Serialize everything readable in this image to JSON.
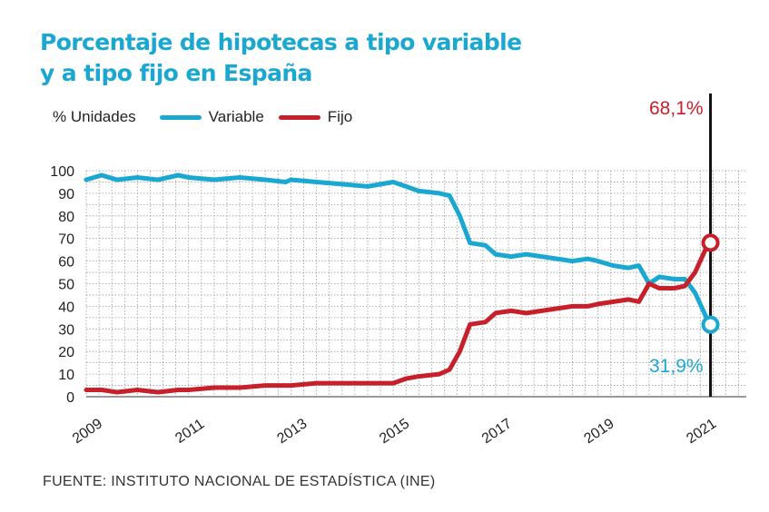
{
  "title_line1": "Porcentaje de hipotecas a tipo variable",
  "title_line2": "y a tipo fijo en España",
  "legend": {
    "unit_label": "% Unidades"
  },
  "source": "FUENTE: INSTITUTO NACIONAL DE ESTADÍSTICA (INE)",
  "colors": {
    "variable": "#1aa7d1",
    "fijo": "#c8202b",
    "title": "#1aa7d1"
  },
  "chart_data": {
    "type": "line",
    "title": "Porcentaje de hipotecas a tipo variable y a tipo fijo en España",
    "xlabel": "",
    "ylabel": "% Unidades",
    "ylim": [
      0,
      100
    ],
    "xlim": [
      2009,
      2021.9
    ],
    "yticks": [
      "0",
      "10",
      "20",
      "30",
      "40",
      "50",
      "60",
      "70",
      "80",
      "90",
      "100"
    ],
    "xticks": [
      "2009",
      "2011",
      "2013",
      "2015",
      "2017",
      "2019",
      "2021"
    ],
    "grid": true,
    "legend_position": "top-left",
    "series": [
      {
        "name": "Variable",
        "color": "#1aa7d1",
        "x": [
          2009.0,
          2009.3,
          2009.6,
          2010.0,
          2010.4,
          2010.8,
          2011.0,
          2011.5,
          2012.0,
          2012.5,
          2012.9,
          2013.0,
          2013.5,
          2014.0,
          2014.5,
          2015.0,
          2015.25,
          2015.5,
          2015.9,
          2016.1,
          2016.3,
          2016.5,
          2016.8,
          2017.0,
          2017.3,
          2017.6,
          2017.9,
          2018.2,
          2018.5,
          2018.8,
          2019.0,
          2019.3,
          2019.6,
          2019.8,
          2020.0,
          2020.2,
          2020.5,
          2020.7,
          2020.9,
          2021.1,
          2021.2
        ],
        "values": [
          96,
          98,
          96,
          97,
          96,
          98,
          97,
          96,
          97,
          96,
          95,
          96,
          95,
          94,
          93,
          95,
          93,
          91,
          90,
          89,
          80,
          68,
          67,
          63,
          62,
          63,
          62,
          61,
          60,
          61,
          60,
          58,
          57,
          58,
          50,
          53,
          52,
          52,
          46,
          36,
          31.9
        ]
      },
      {
        "name": "Fijo",
        "color": "#c8202b",
        "x": [
          2009.0,
          2009.3,
          2009.6,
          2010.0,
          2010.4,
          2010.8,
          2011.0,
          2011.5,
          2012.0,
          2012.5,
          2012.9,
          2013.0,
          2013.5,
          2014.0,
          2014.5,
          2015.0,
          2015.25,
          2015.5,
          2015.9,
          2016.1,
          2016.3,
          2016.5,
          2016.8,
          2017.0,
          2017.3,
          2017.6,
          2017.9,
          2018.2,
          2018.5,
          2018.8,
          2019.0,
          2019.3,
          2019.6,
          2019.8,
          2020.0,
          2020.2,
          2020.5,
          2020.7,
          2020.9,
          2021.1,
          2021.2
        ],
        "values": [
          3,
          3,
          2,
          3,
          2,
          3,
          3,
          4,
          4,
          5,
          5,
          5,
          6,
          6,
          6,
          6,
          8,
          9,
          10,
          12,
          20,
          32,
          33,
          37,
          38,
          37,
          38,
          39,
          40,
          40,
          41,
          42,
          43,
          42,
          50,
          48,
          48,
          49,
          55,
          65,
          68.1
        ]
      }
    ],
    "annotations": [
      {
        "series": "Fijo",
        "x": 2021.2,
        "y": 68.1,
        "text": "68,1%"
      },
      {
        "series": "Variable",
        "x": 2021.2,
        "y": 31.9,
        "text": "31,9%"
      }
    ]
  }
}
